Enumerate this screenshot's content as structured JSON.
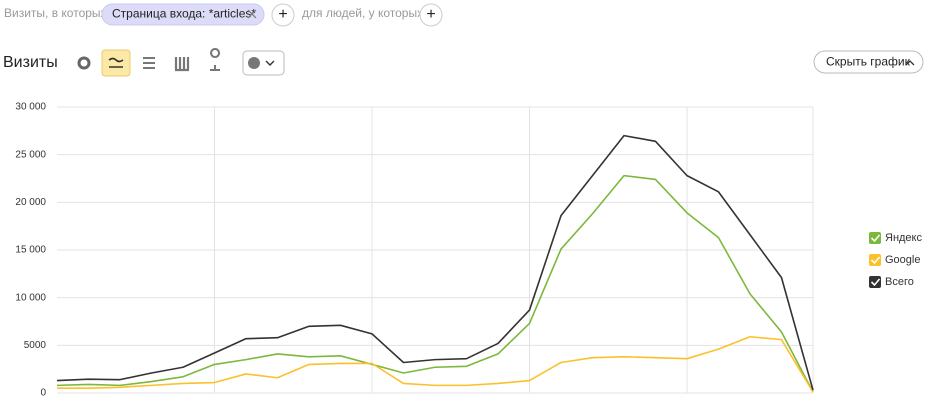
{
  "filters": {
    "prefix": "Визиты, в которых",
    "chip": "Страница входа: *articles*",
    "add": "+",
    "middle": "для людей, у которых",
    "add2": "+"
  },
  "header": {
    "title": "Визиты",
    "hide_button": "Скрыть график"
  },
  "chart_data": {
    "type": "line",
    "categories": [
      null,
      null,
      null,
      null,
      null,
      null,
      null,
      null,
      null,
      null,
      null,
      null,
      null,
      null,
      null,
      null,
      null,
      null,
      null,
      null,
      null,
      null,
      null,
      null,
      null
    ],
    "ylim": [
      0,
      30000
    ],
    "yticks": [
      0,
      {
        "value": 5000,
        "label": "5000"
      },
      {
        "value": 10000,
        "label": "10 000"
      },
      {
        "value": 15000,
        "label": "15 000"
      },
      {
        "value": 20000,
        "label": "20 000"
      },
      {
        "value": 25000,
        "label": "25 000"
      },
      {
        "value": 30000,
        "label": "30 000"
      }
    ],
    "grid": true,
    "legend": "right",
    "series": [
      {
        "name": "Яндекс",
        "color": "#7cb83c",
        "values": [
          800,
          900,
          800,
          1200,
          1700,
          3000,
          3500,
          4100,
          3800,
          3900,
          3000,
          2100,
          2700,
          2800,
          4100,
          7300,
          15100,
          18800,
          22800,
          22400,
          18900,
          16300,
          10400,
          6400,
          100
        ]
      },
      {
        "name": "Google",
        "color": "#fcc02b",
        "values": [
          500,
          500,
          600,
          800,
          1000,
          1100,
          2000,
          1600,
          3000,
          3100,
          3100,
          1000,
          800,
          800,
          1000,
          1300,
          3200,
          3700,
          3800,
          3700,
          3600,
          4600,
          5900,
          5600,
          100
        ]
      },
      {
        "name": "Всего",
        "color": "#333333",
        "values": [
          1300,
          1450,
          1400,
          2100,
          2700,
          4200,
          5700,
          5800,
          7000,
          7100,
          6200,
          3200,
          3500,
          3600,
          5200,
          8700,
          18600,
          22800,
          27000,
          26400,
          22800,
          21100,
          16600,
          12100,
          300
        ]
      }
    ]
  }
}
